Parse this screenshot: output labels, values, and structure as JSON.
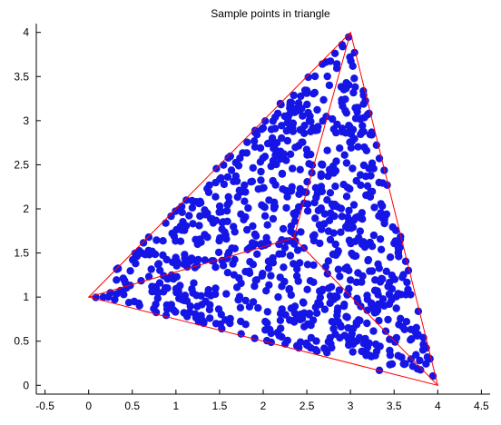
{
  "chart_data": {
    "type": "scatter",
    "title": "Sample points in triangle",
    "xlabel": "",
    "ylabel": "",
    "xlim": [
      -0.6,
      4.6
    ],
    "ylim": [
      -0.1,
      4.1
    ],
    "grid": false,
    "x_ticks": [
      -0.5,
      0,
      0.5,
      1,
      1.5,
      2,
      2.5,
      3,
      3.5,
      4,
      4.5
    ],
    "x_tick_labels": [
      "-0.5",
      "0",
      "0.5",
      "1",
      "1.5",
      "2",
      "2.5",
      "3",
      "3.5",
      "4",
      "4.5"
    ],
    "y_ticks": [
      0,
      0.5,
      1,
      1.5,
      2,
      2.5,
      3,
      3.5,
      4
    ],
    "y_tick_labels": [
      "0",
      "0.5",
      "1",
      "1.5",
      "2",
      "2.5",
      "3",
      "3.5",
      "4"
    ],
    "triangle": {
      "vertices": [
        [
          0,
          1
        ],
        [
          3,
          4
        ],
        [
          4,
          0
        ]
      ],
      "interior_point": [
        2.35,
        1.67
      ],
      "color": "#ff0000"
    },
    "points": {
      "count": 900,
      "color": "#1515e6",
      "marker": "filled-circle"
    }
  }
}
